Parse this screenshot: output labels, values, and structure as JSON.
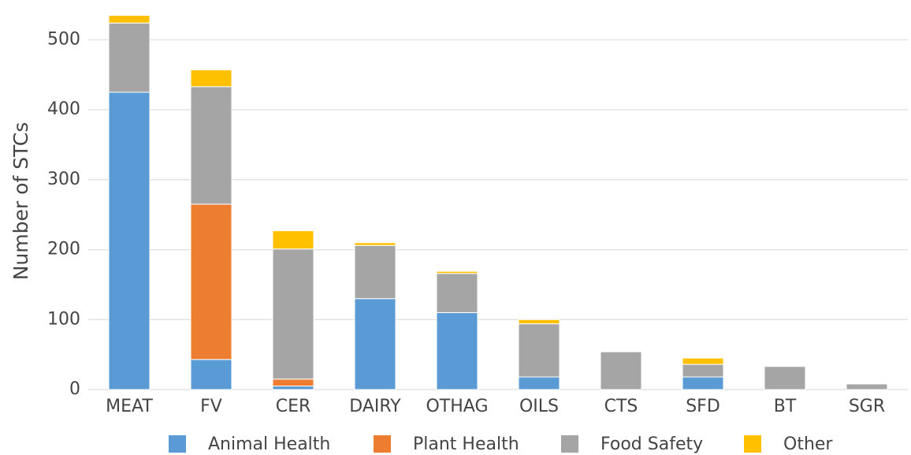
{
  "chart_data": {
    "type": "stacked_bar",
    "y_label": "Number of STCs",
    "categories": [
      "MEAT",
      "FV",
      "CER",
      "DAIRY",
      "OTHAG",
      "OILS",
      "CTS",
      "SFD",
      "BT",
      "SGR"
    ],
    "series": [
      {
        "name": "Animal Health",
        "color": "#5b9bd5",
        "values": [
          425,
          43,
          5,
          130,
          110,
          18,
          0,
          18,
          0,
          0
        ]
      },
      {
        "name": "Plant Health",
        "color": "#ed7d31",
        "values": [
          0,
          222,
          10,
          0,
          0,
          0,
          0,
          0,
          0,
          0
        ]
      },
      {
        "name": "Food Safety",
        "color": "#a5a5a5",
        "values": [
          99,
          168,
          186,
          76,
          56,
          76,
          54,
          18,
          33,
          8
        ]
      },
      {
        "name": "Other",
        "color": "#ffc000",
        "values": [
          11,
          24,
          26,
          4,
          3,
          6,
          0,
          9,
          0,
          0
        ]
      }
    ],
    "ylim": [
      0,
      540
    ],
    "yticks": [
      0,
      100,
      200,
      300,
      400,
      500
    ],
    "grid": true
  }
}
